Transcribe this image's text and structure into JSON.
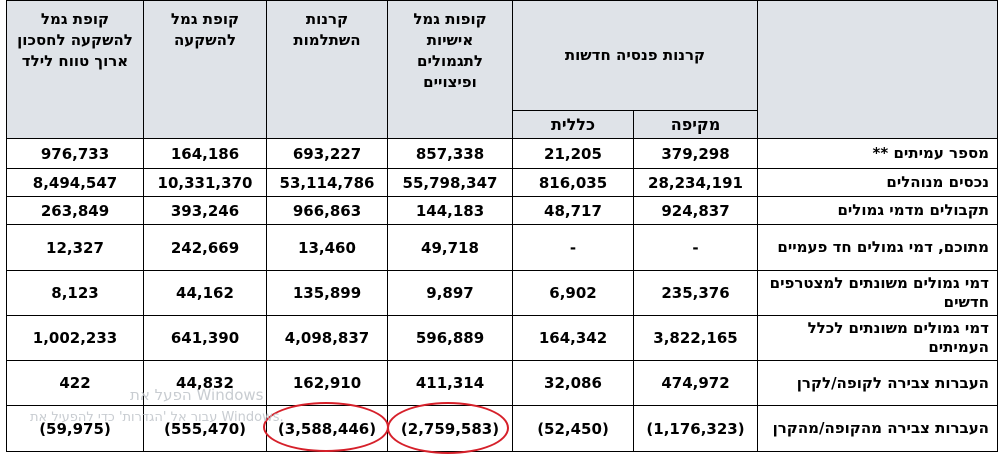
{
  "headers": {
    "pension_group": "קרנות פנסיה חדשות",
    "comprehensive": "מקיפה",
    "general": "כללית",
    "personal_provident": "קופות גמל אישיות לתגמולים ופיצויים",
    "study_funds": "קרנות השתלמות",
    "investment_provident": "קופת גמל להשקעה",
    "child_savings": "קופת גמל להשקעה לחסכון ארוך טווח לילד"
  },
  "rows": [
    {
      "label": "מספר עמיתים **",
      "values": [
        "379,298",
        "21,205",
        "857,338",
        "693,227",
        "164,186",
        "976,733"
      ]
    },
    {
      "label": "נכסים מנוהלים",
      "values": [
        "28,234,191",
        "816,035",
        "55,798,347",
        "53,114,786",
        "10,331,370",
        "8,494,547"
      ]
    },
    {
      "label": "תקבולים מדמי גמולים",
      "values": [
        "924,837",
        "48,717",
        "144,183",
        "966,863",
        "393,246",
        "263,849"
      ]
    },
    {
      "label": "מתוכם, דמי גמולים חד פעמיים",
      "values": [
        "-",
        "-",
        "49,718",
        "13,460",
        "242,669",
        "12,327"
      ]
    },
    {
      "label": "דמי גמולים משונתים למצטרפים חדשים",
      "values": [
        "235,376",
        "6,902",
        "9,897",
        "135,899",
        "44,162",
        "8,123"
      ]
    },
    {
      "label": "דמי גמולים משונתים לכלל העמיתים",
      "values": [
        "3,822,165",
        "164,342",
        "596,889",
        "4,098,837",
        "641,390",
        "1,002,233"
      ]
    },
    {
      "label": "העברות צבירה לקופה/לקרן",
      "values": [
        "474,972",
        "32,086",
        "411,314",
        "162,910",
        "44,832",
        "422"
      ]
    },
    {
      "label": "העברות צבירה מהקופה/מהקרן",
      "values": [
        "(1,176,323)",
        "(52,450)",
        "(2,759,583)",
        "(3,588,446)",
        "(555,470)",
        "(59,975)"
      ]
    }
  ],
  "watermark": {
    "line1": "הפעל את Windows",
    "line2": "עבור אל 'הגדרות' כדי להפעיל את Windows."
  },
  "colors": {
    "header_bg": "#dfe3e8",
    "highlight_oval": "#d6202a"
  }
}
